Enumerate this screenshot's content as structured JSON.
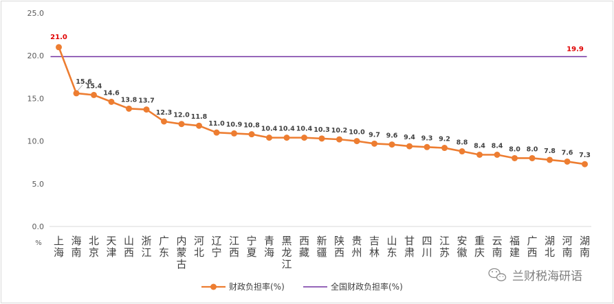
{
  "chart_data": {
    "type": "line",
    "y_unit": "%",
    "ylim": [
      0,
      25
    ],
    "y_ticks": [
      "0.0",
      "5.0",
      "10.0",
      "15.0",
      "20.0",
      "25.0"
    ],
    "grid": false,
    "legend_position": "bottom",
    "categories": [
      "上海",
      "海南",
      "北京",
      "天津",
      "山西",
      "浙江",
      "广东",
      "内蒙古",
      "河北",
      "辽宁",
      "江西",
      "宁夏",
      "青海",
      "黑龙江",
      "西藏",
      "新疆",
      "陕西",
      "贵州",
      "吉林",
      "山东",
      "甘肃",
      "四川",
      "江苏",
      "安徽",
      "重庆",
      "云南",
      "福建",
      "广西",
      "湖北",
      "河南",
      "湖南"
    ],
    "series": [
      {
        "name": "财政负担率(%)",
        "color": "#ed7d31",
        "values": [
          21.0,
          15.6,
          15.4,
          14.6,
          13.8,
          13.7,
          12.3,
          12.0,
          11.8,
          11.0,
          10.9,
          10.8,
          10.4,
          10.4,
          10.4,
          10.3,
          10.2,
          10.0,
          9.7,
          9.6,
          9.4,
          9.3,
          9.2,
          8.8,
          8.4,
          8.4,
          8.0,
          8.0,
          7.8,
          7.6,
          7.3
        ],
        "labels": [
          "21.0",
          "15.6",
          "15.4",
          "14.6",
          "13.8",
          "13.7",
          "12.3",
          "12.0",
          "11.8",
          "11.0",
          "10.9",
          "10.8",
          "10.4",
          "10.4",
          "10.4",
          "10.3",
          "10.2",
          "10.0",
          "9.7",
          "9.6",
          "9.4",
          "9.3",
          "9.2",
          "8.8",
          "8.4",
          "8.4",
          "8.0",
          "8.0",
          "7.8",
          "7.6",
          "7.3"
        ]
      },
      {
        "name": "全国财政负担率(%)",
        "color": "#7030a0",
        "value": 19.9,
        "label": "19.9"
      }
    ]
  },
  "watermark": {
    "text": "兰财税海研语",
    "icon": "wechat-icon"
  }
}
